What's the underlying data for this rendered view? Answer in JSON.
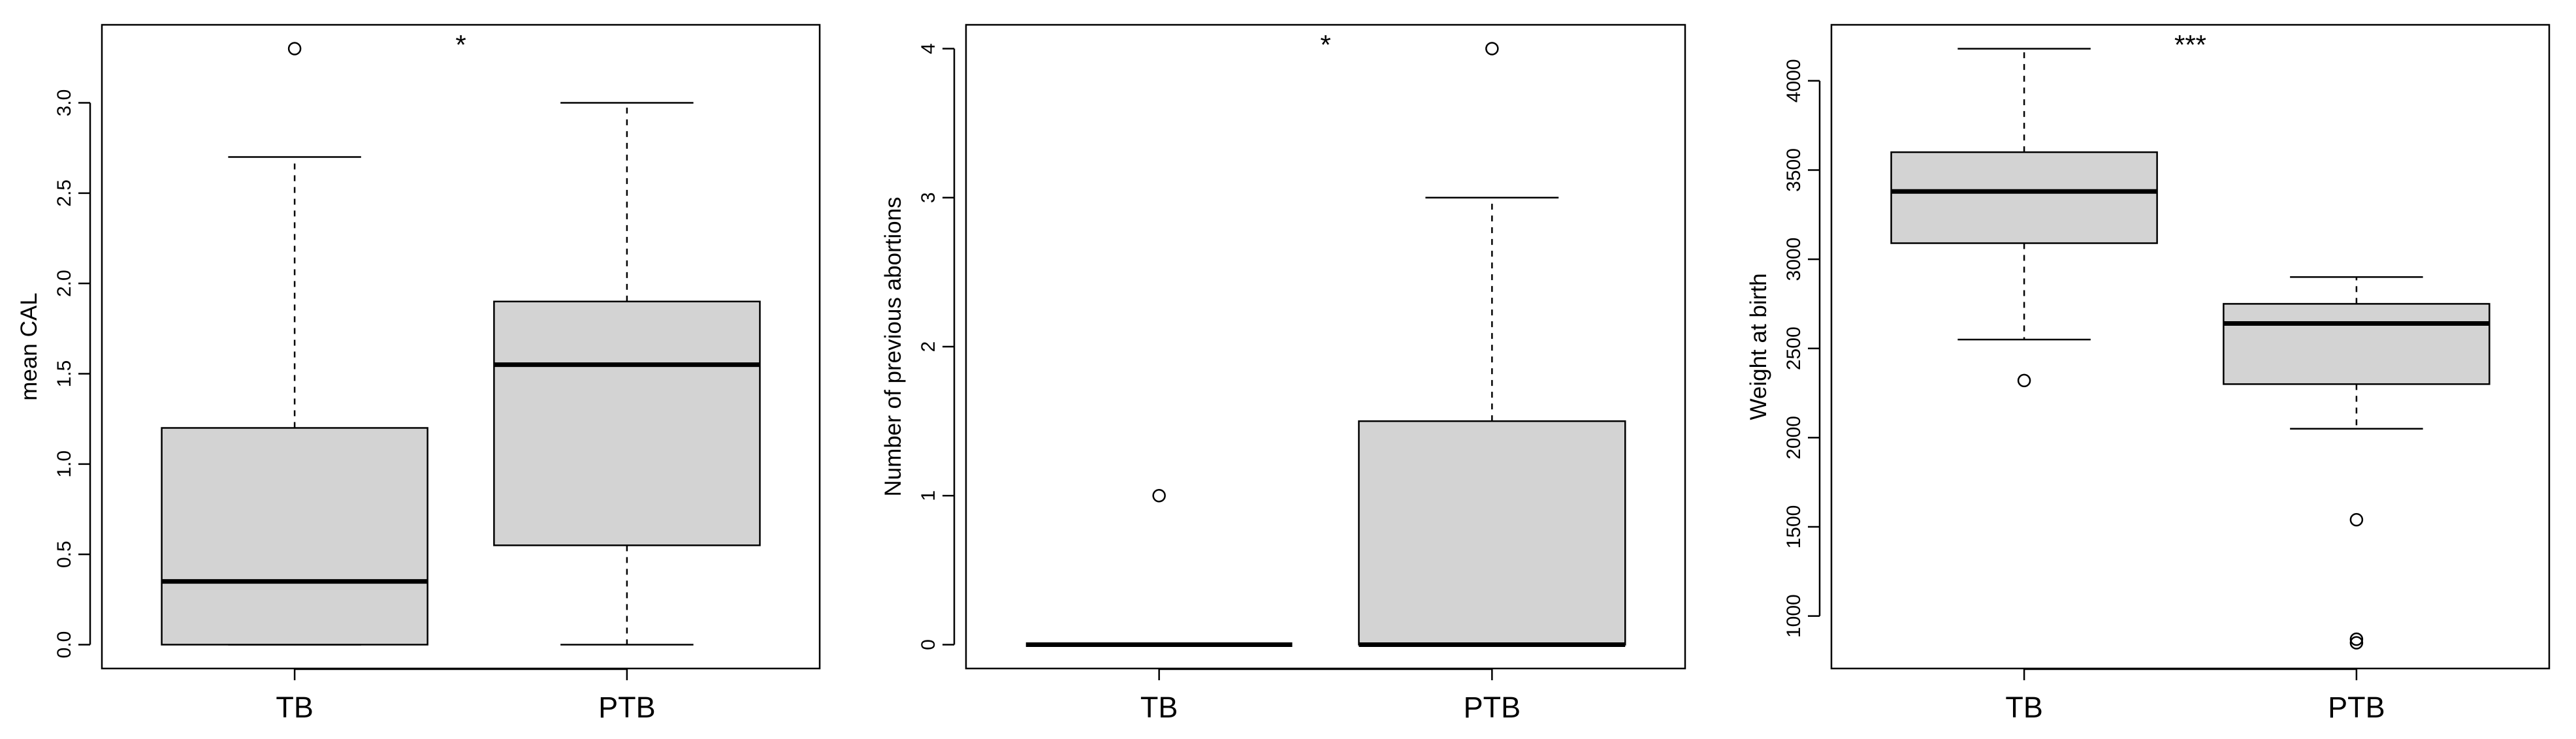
{
  "chart_data": [
    {
      "type": "box",
      "ylabel": "mean CAL",
      "annotation": "*",
      "categories": [
        "TB",
        "PTB"
      ],
      "boxes": [
        {
          "min": 0,
          "q1": 0,
          "median": 0.35,
          "q3": 1.2,
          "max": 2.7,
          "outliers": [
            3.3
          ]
        },
        {
          "min": 0,
          "q1": 0.55,
          "median": 1.55,
          "q3": 1.9,
          "max": 3.0,
          "outliers": []
        }
      ],
      "color": "#d3d3d3",
      "ylim": [
        -0.132,
        3.432
      ],
      "yticks": [
        {
          "value": 0,
          "label": "0.0"
        },
        {
          "value": 0.5,
          "label": "0.5"
        },
        {
          "value": 1,
          "label": "1.0"
        },
        {
          "value": 1.5,
          "label": "1.5"
        },
        {
          "value": 2,
          "label": "2.0"
        },
        {
          "value": 2.5,
          "label": "2.5"
        },
        {
          "value": 3,
          "label": "3.0"
        }
      ]
    },
    {
      "type": "box",
      "ylabel": "Number of previous abortions",
      "annotation": "*",
      "categories": [
        "TB",
        "PTB"
      ],
      "boxes": [
        {
          "min": 0,
          "q1": 0,
          "median": 0,
          "q3": 0,
          "max": 0,
          "outliers": [
            1
          ]
        },
        {
          "min": 0,
          "q1": 0,
          "median": 0,
          "q3": 1.5,
          "max": 3,
          "outliers": [
            4
          ]
        }
      ],
      "color": "#d3d3d3",
      "ylim": [
        -0.16,
        4.16
      ],
      "yticks": [
        0,
        1,
        2,
        3,
        4
      ]
    },
    {
      "type": "box",
      "ylabel": "Weight at birth",
      "annotation": "***",
      "categories": [
        "TB",
        "PTB"
      ],
      "boxes": [
        {
          "min": 2550,
          "q1": 3090,
          "median": 3380,
          "q3": 3600,
          "max": 4180,
          "outliers": [
            2320
          ]
        },
        {
          "min": 2050,
          "q1": 2300,
          "median": 2640,
          "q3": 2750,
          "max": 2900,
          "outliers": [
            1540,
            870,
            850
          ]
        }
      ],
      "color": "#d3d3d3",
      "ylim": [
        706,
        4314
      ],
      "yticks": [
        1000,
        1500,
        2000,
        2500,
        3000,
        3500,
        4000
      ]
    }
  ]
}
